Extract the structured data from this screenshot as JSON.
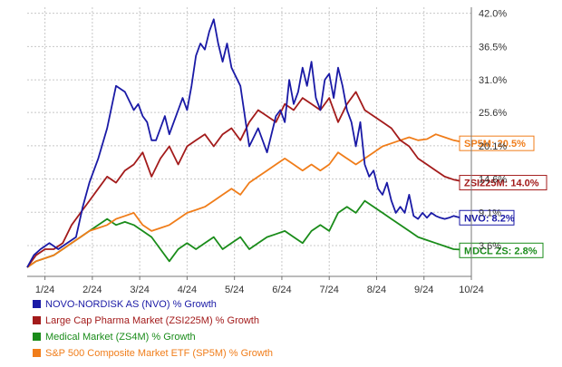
{
  "chart_data": {
    "type": "line",
    "title": "",
    "xlabel": "",
    "ylabel": "",
    "x_labels": [
      "1/24",
      "2/24",
      "3/24",
      "4/24",
      "5/24",
      "6/24",
      "7/24",
      "8/24",
      "9/24",
      "10/24"
    ],
    "ylim": [
      -1.5,
      43
    ],
    "y_ticks": [
      42.0,
      36.5,
      31.0,
      25.6,
      20.1,
      14.6,
      9.1,
      3.6
    ],
    "y_tick_labels": [
      "42.0%",
      "36.5%",
      "31.0%",
      "25.6%",
      "20.1%",
      "14.6%",
      "9.1%",
      "3.6%"
    ],
    "grid": true,
    "legend_position": "bottom",
    "series": [
      {
        "name": "NOVO-NORDISK AS (NVO) % Growth",
        "color": "#1a1aa6",
        "end_label": "NVO: 8.2%",
        "label_box": "#1a1aa6",
        "x": [
          0,
          1.5,
          3,
          5,
          7,
          9,
          11,
          12.5,
          14,
          16,
          18,
          20,
          22,
          24,
          25,
          26,
          27,
          28,
          29,
          30,
          31,
          32,
          33,
          34,
          35,
          36,
          37,
          38,
          39,
          40,
          41,
          42,
          43,
          44,
          45,
          46,
          48,
          50,
          52,
          54,
          56,
          57,
          58,
          59,
          60,
          61,
          62,
          63,
          64,
          65,
          66,
          67,
          68,
          69,
          70,
          71,
          72,
          73,
          74,
          75,
          76,
          77,
          78,
          79,
          80,
          81,
          82,
          83,
          84,
          85,
          86,
          87,
          88,
          89,
          90,
          91,
          92,
          93,
          94,
          95,
          96,
          97,
          98,
          99,
          100
        ],
        "y": [
          0,
          2,
          3,
          4,
          3,
          4,
          5,
          10,
          14,
          18,
          23,
          30,
          29,
          26,
          27,
          25,
          24,
          21,
          21,
          23,
          25,
          22,
          24,
          26,
          28,
          26,
          30,
          35,
          37,
          36,
          39,
          41,
          37,
          34,
          37,
          33,
          30,
          20,
          23,
          19,
          25,
          26,
          24,
          31,
          27,
          29,
          33,
          30,
          34,
          28,
          26,
          31,
          32,
          28,
          33,
          30,
          26,
          24,
          20,
          24,
          17,
          15,
          16,
          13,
          12,
          14,
          11,
          9,
          10,
          9,
          12,
          8.5,
          8,
          9,
          8.2,
          9,
          8.5,
          8.2,
          8,
          8.2,
          8.5,
          8.3,
          8.1,
          8.2,
          8.2
        ]
      },
      {
        "name": "Large Cap Pharma Market (ZSI225M) % Growth",
        "color": "#a31b1b",
        "end_label": "ZSI225M: 14.0%",
        "label_box": "#a31b1b",
        "x": [
          0,
          2,
          4,
          6,
          8,
          10,
          12,
          14,
          16,
          18,
          20,
          22,
          24,
          26,
          28,
          30,
          32,
          34,
          36,
          38,
          40,
          42,
          44,
          46,
          48,
          50,
          52,
          54,
          56,
          58,
          60,
          62,
          64,
          66,
          68,
          70,
          72,
          74,
          76,
          78,
          80,
          82,
          84,
          86,
          88,
          90,
          92,
          94,
          96,
          98,
          100
        ],
        "y": [
          0,
          2,
          3,
          3,
          4,
          7,
          9,
          11,
          13,
          15,
          14,
          16,
          17,
          19,
          15,
          18,
          20,
          17,
          20,
          21,
          22,
          20,
          22,
          23,
          21,
          24,
          26,
          25,
          24,
          27,
          26,
          28,
          27,
          26,
          28,
          24,
          27,
          29,
          26,
          25,
          24,
          23,
          21,
          20,
          18,
          17,
          16,
          15,
          14.5,
          14.2,
          14
        ]
      },
      {
        "name": "Medical Market (ZS4M) % Growth",
        "color": "#1a8c1a",
        "end_label": "MDCL ZS: 2.8%",
        "label_box": "#1a8c1a",
        "x": [
          0,
          2,
          4,
          6,
          8,
          10,
          12,
          14,
          16,
          18,
          20,
          22,
          24,
          26,
          28,
          30,
          32,
          34,
          36,
          38,
          40,
          42,
          44,
          46,
          48,
          50,
          52,
          54,
          56,
          58,
          60,
          62,
          64,
          66,
          68,
          70,
          72,
          74,
          76,
          78,
          80,
          82,
          84,
          86,
          88,
          90,
          92,
          94,
          96,
          98,
          100
        ],
        "y": [
          0,
          1,
          1.5,
          2,
          3,
          4,
          5,
          6,
          7,
          8,
          7,
          7.5,
          7,
          6,
          5,
          3,
          1,
          3,
          4,
          3,
          4,
          5,
          3,
          4,
          5,
          3,
          4,
          5,
          5.5,
          6,
          5,
          4,
          6,
          7,
          6,
          9,
          10,
          9,
          11,
          10,
          9,
          8,
          7,
          6,
          5,
          4.5,
          4,
          3.5,
          3,
          2.9,
          2.8
        ]
      },
      {
        "name": "S&P 500 Composite Market ETF (SP5M) % Growth",
        "color": "#f07d1a",
        "end_label": "SP5M: 20.5%",
        "label_box": "#f07d1a",
        "x": [
          0,
          2,
          4,
          6,
          8,
          10,
          12,
          14,
          16,
          18,
          20,
          22,
          24,
          26,
          28,
          30,
          32,
          34,
          36,
          38,
          40,
          42,
          44,
          46,
          48,
          50,
          52,
          54,
          56,
          58,
          60,
          62,
          64,
          66,
          68,
          70,
          72,
          74,
          76,
          78,
          80,
          82,
          84,
          86,
          88,
          90,
          92,
          94,
          96,
          98,
          100
        ],
        "y": [
          0,
          1,
          1.5,
          2,
          3,
          4,
          5,
          6,
          6.5,
          7,
          8,
          8.5,
          9,
          7,
          6,
          6.5,
          7,
          8,
          9,
          9.5,
          10,
          11,
          12,
          13,
          12,
          14,
          15,
          16,
          17,
          18,
          17,
          16,
          17,
          16,
          17,
          19,
          18,
          17,
          18,
          19,
          20,
          20.5,
          21,
          21.5,
          21,
          21.2,
          22,
          21.5,
          21,
          20.7,
          20.5
        ]
      }
    ]
  }
}
